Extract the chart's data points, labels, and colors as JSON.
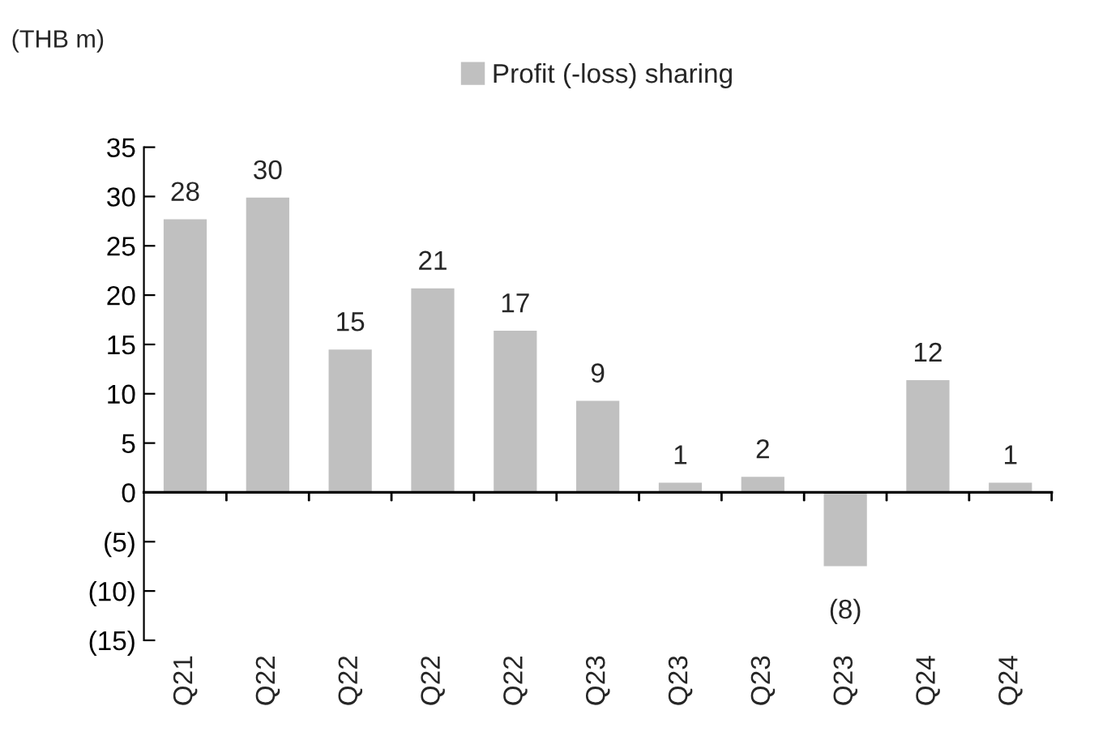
{
  "chart_data": {
    "type": "bar",
    "ylabel": "(THB m)",
    "categories": [
      "Q21",
      "Q22",
      "Q22",
      "Q22",
      "Q22",
      "Q23",
      "Q23",
      "Q23",
      "Q23",
      "Q24",
      "Q24"
    ],
    "series": [
      {
        "name": "Profit (-loss) sharing",
        "color": "#c0c0c0",
        "values": [
          27.8,
          30.0,
          14.6,
          20.8,
          16.5,
          9.4,
          1.1,
          1.7,
          -7.6,
          11.5,
          1.1
        ],
        "value_labels": [
          "28",
          "30",
          "15",
          "21",
          "17",
          "9",
          "1",
          "2",
          "(8)",
          "12",
          "1"
        ]
      }
    ],
    "ylim": [
      -15,
      35
    ],
    "yticks": [
      {
        "value": -15,
        "label": "(15)"
      },
      {
        "value": -10,
        "label": "(10)"
      },
      {
        "value": -5,
        "label": "(5)"
      },
      0,
      5,
      10,
      15,
      20,
      25,
      30,
      35
    ],
    "legend": "top"
  }
}
